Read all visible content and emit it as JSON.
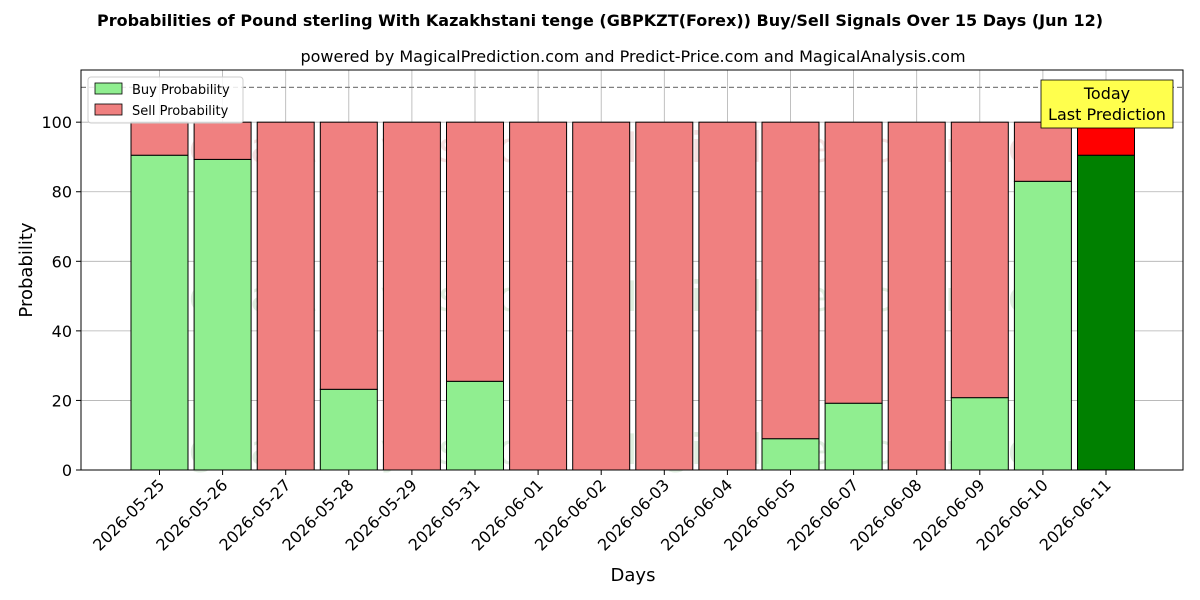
{
  "chart_data": {
    "type": "bar",
    "stacked": true,
    "title": "Probabilities of Pound sterling With Kazakhstani tenge (GBPKZT(Forex)) Buy/Sell Signals Over 15 Days (Jun 12)",
    "subtitle": "powered by MagicalPrediction.com and Predict-Price.com and MagicalAnalysis.com",
    "xlabel": "Days",
    "ylabel": "Probability",
    "ylim": [
      0,
      115
    ],
    "yticks": [
      0,
      20,
      40,
      60,
      80,
      100
    ],
    "reference_line": 110,
    "grid": true,
    "legend_position": "top-left",
    "categories": [
      "2026-05-25",
      "2026-05-26",
      "2026-05-27",
      "2026-05-28",
      "2026-05-29",
      "2026-05-31",
      "2026-06-01",
      "2026-06-02",
      "2026-06-03",
      "2026-06-04",
      "2026-06-05",
      "2026-06-07",
      "2026-06-08",
      "2026-06-09",
      "2026-06-10",
      "2026-06-11"
    ],
    "series": [
      {
        "name": "Buy Probability",
        "color": "#90ee90",
        "values": [
          90.5,
          89.3,
          0,
          23.2,
          0,
          25.5,
          0,
          0,
          0,
          0,
          9.0,
          19.2,
          0,
          20.8,
          83.0,
          90.5
        ]
      },
      {
        "name": "Sell Probability",
        "color": "#f08080",
        "values": [
          9.5,
          10.7,
          100,
          76.8,
          100,
          74.5,
          100,
          100,
          100,
          100,
          91.0,
          80.8,
          100,
          79.2,
          17.0,
          9.5
        ]
      }
    ],
    "highlight": {
      "index": 15,
      "buy_color": "#008000",
      "sell_color": "#ff0000"
    },
    "annotation": {
      "line1": "Today",
      "line2": "Last Prediction",
      "background": "#ffff4d"
    },
    "watermarks": [
      "MagicalAnalysis.com",
      "MagicalPrediction.com"
    ]
  }
}
